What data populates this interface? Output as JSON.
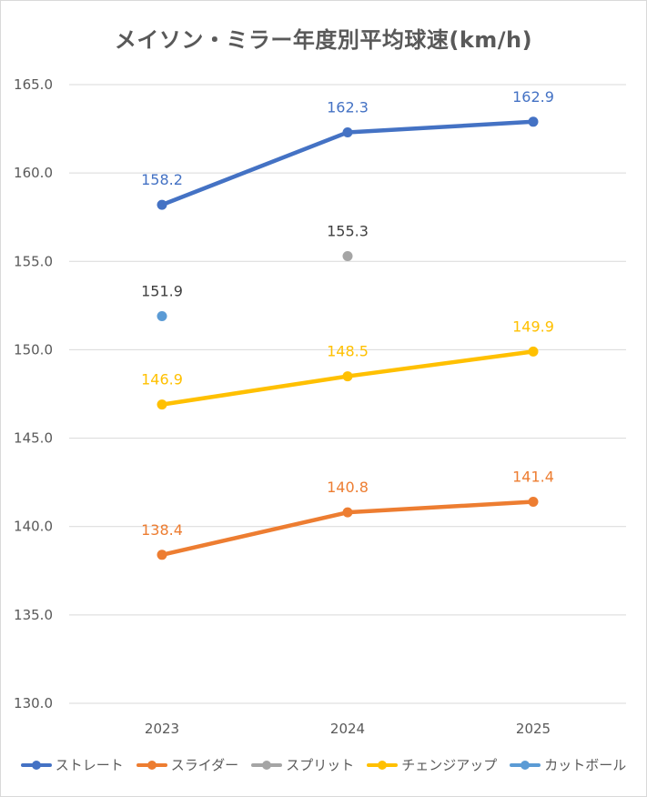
{
  "chart_data": {
    "type": "line",
    "title": "メイソン・ミラー年度別平均球速(km/h)",
    "categories": [
      "2023",
      "2024",
      "2025"
    ],
    "ylim": [
      130,
      165
    ],
    "yticks": [
      "130.0",
      "135.0",
      "140.0",
      "145.0",
      "150.0",
      "155.0",
      "160.0",
      "165.0"
    ],
    "grid": true,
    "legend_position": "bottom",
    "series": [
      {
        "name": "ストレート",
        "color": "#4472c4",
        "values": [
          158.2,
          162.3,
          162.9
        ],
        "labels": [
          "158.2",
          "162.3",
          "162.9"
        ],
        "label_color": "#4472c4"
      },
      {
        "name": "スライダー",
        "color": "#ed7d31",
        "values": [
          138.4,
          140.8,
          141.4
        ],
        "labels": [
          "138.4",
          "140.8",
          "141.4"
        ],
        "label_color": "#ed7d31"
      },
      {
        "name": "スプリット",
        "color": "#a5a5a5",
        "values": [
          null,
          155.3,
          null
        ],
        "labels": [
          "",
          "155.3",
          ""
        ],
        "label_color": "#404040"
      },
      {
        "name": "チェンジアップ",
        "color": "#ffc000",
        "values": [
          146.9,
          148.5,
          149.9
        ],
        "labels": [
          "146.9",
          "148.5",
          "149.9"
        ],
        "label_color": "#ffc000"
      },
      {
        "name": "カットボール",
        "color": "#5b9bd5",
        "values": [
          151.9,
          null,
          null
        ],
        "labels": [
          "151.9",
          "",
          ""
        ],
        "label_color": "#404040"
      }
    ]
  }
}
